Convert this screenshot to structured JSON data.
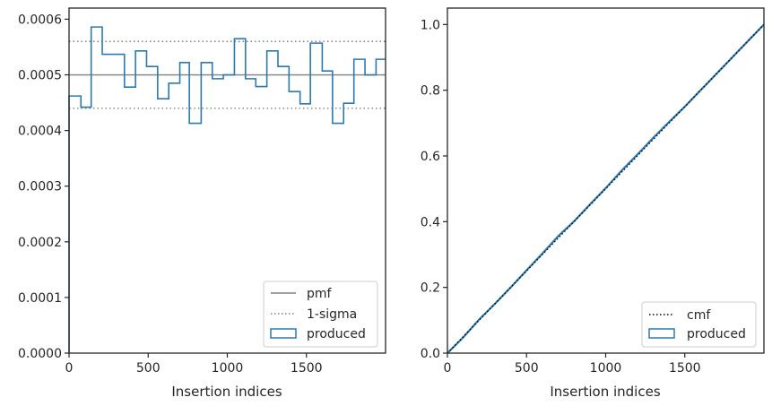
{
  "colors": {
    "produced": "#2a7ab0",
    "pmf": "#808080",
    "sigma": "#808080",
    "cmf": "#000000",
    "axes": "#262626"
  },
  "chart_data": [
    {
      "type": "histogram-step",
      "xlabel": "Insertion indices",
      "ylabel": "",
      "xlim": [
        0,
        2000
      ],
      "ylim": [
        0,
        0.00062
      ],
      "xticks": [
        0,
        500,
        1000,
        1500
      ],
      "xtick_labels": [
        "0",
        "500",
        "1000",
        "1500"
      ],
      "yticks": [
        0,
        0.0001,
        0.0002,
        0.0003,
        0.0004,
        0.0005,
        0.0006
      ],
      "ytick_labels": [
        "0.0000",
        "0.0001",
        "0.0002",
        "0.0003",
        "0.0004",
        "0.0005",
        "0.0006"
      ],
      "pmf": 0.0005,
      "sigma_band": [
        0.00044,
        0.00056
      ],
      "bin_edges": [
        0,
        75,
        140,
        210,
        350,
        420,
        490,
        560,
        630,
        700,
        760,
        835,
        905,
        975,
        1045,
        1115,
        1180,
        1250,
        1320,
        1390,
        1460,
        1525,
        1600,
        1665,
        1735,
        1800,
        1870,
        1940,
        2000
      ],
      "bin_values": [
        0.000462,
        0.000442,
        0.000586,
        0.000537,
        0.000478,
        0.000543,
        0.000515,
        0.000457,
        0.000485,
        0.000522,
        0.000413,
        0.000522,
        0.000493,
        0.0005,
        0.000565,
        0.000493,
        0.000479,
        0.000543,
        0.000515,
        0.00047,
        0.000448,
        0.000557,
        0.000507,
        0.000413,
        0.000449,
        0.000528,
        0.0005,
        0.000528
      ],
      "legend": {
        "placement": "lower-right",
        "entries": [
          {
            "label": "pmf",
            "style": "solid-line"
          },
          {
            "label": "1-sigma",
            "style": "dotted-line"
          },
          {
            "label": "produced",
            "style": "patch"
          }
        ]
      }
    },
    {
      "type": "line",
      "xlabel": "Insertion indices",
      "ylabel": "",
      "xlim": [
        0,
        2000
      ],
      "ylim": [
        0,
        1.05
      ],
      "xticks": [
        0,
        500,
        1000,
        1500
      ],
      "xtick_labels": [
        "0",
        "500",
        "1000",
        "1500"
      ],
      "yticks": [
        0,
        0.2,
        0.4,
        0.6,
        0.8,
        1.0
      ],
      "ytick_labels": [
        "0.0",
        "0.2",
        "0.4",
        "0.6",
        "0.8",
        "1.0"
      ],
      "series": [
        {
          "name": "cmf",
          "x": [
            0,
            2000
          ],
          "y": [
            0,
            1.0
          ]
        },
        {
          "name": "produced",
          "x": [
            0,
            100,
            200,
            300,
            400,
            500,
            600,
            700,
            800,
            900,
            1000,
            1100,
            1200,
            1300,
            1400,
            1500,
            1600,
            1700,
            1800,
            1900,
            2000
          ],
          "y": [
            0,
            0.048,
            0.102,
            0.15,
            0.2,
            0.252,
            0.303,
            0.356,
            0.401,
            0.452,
            0.502,
            0.555,
            0.604,
            0.655,
            0.703,
            0.75,
            0.8,
            0.85,
            0.9,
            0.95,
            1.0
          ]
        }
      ],
      "legend": {
        "placement": "lower-right",
        "entries": [
          {
            "label": "cmf",
            "style": "dotted-line"
          },
          {
            "label": "produced",
            "style": "patch"
          }
        ]
      }
    }
  ]
}
